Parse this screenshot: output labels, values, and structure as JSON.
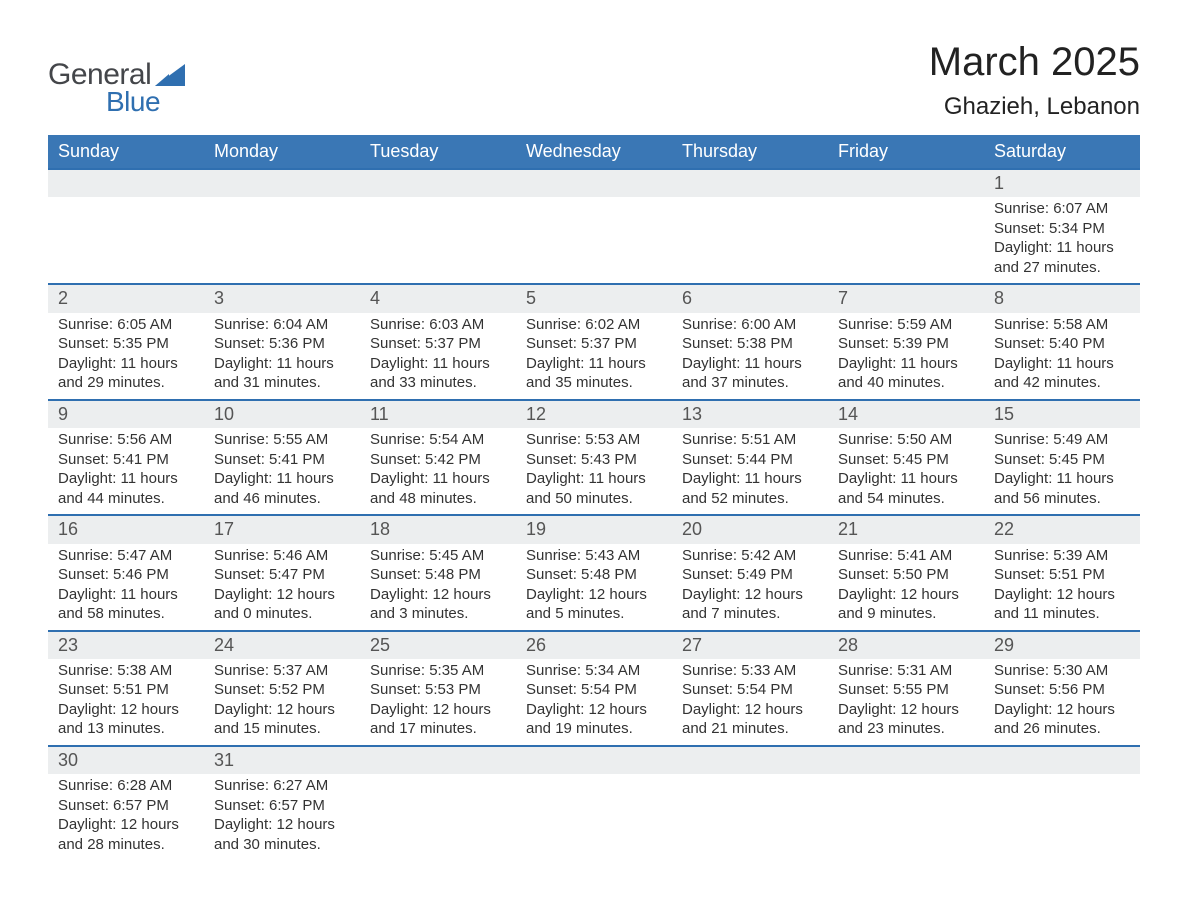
{
  "logo": {
    "text1": "General",
    "text2": "Blue",
    "color_dark": "#44464a",
    "color_blue": "#2f6fb0"
  },
  "title": "March 2025",
  "location": "Ghazieh, Lebanon",
  "colors": {
    "header_bg": "#3a77b5",
    "header_fg": "#ffffff",
    "daynum_bg": "#eceeef",
    "row_divider": "#2f6fb0",
    "body_text": "#333333",
    "page_bg": "#ffffff"
  },
  "day_headers": [
    "Sunday",
    "Monday",
    "Tuesday",
    "Wednesday",
    "Thursday",
    "Friday",
    "Saturday"
  ],
  "weeks": [
    [
      null,
      null,
      null,
      null,
      null,
      null,
      {
        "n": "1",
        "sunrise": "6:07 AM",
        "sunset": "5:34 PM",
        "daylight": "11 hours and 27 minutes."
      }
    ],
    [
      {
        "n": "2",
        "sunrise": "6:05 AM",
        "sunset": "5:35 PM",
        "daylight": "11 hours and 29 minutes."
      },
      {
        "n": "3",
        "sunrise": "6:04 AM",
        "sunset": "5:36 PM",
        "daylight": "11 hours and 31 minutes."
      },
      {
        "n": "4",
        "sunrise": "6:03 AM",
        "sunset": "5:37 PM",
        "daylight": "11 hours and 33 minutes."
      },
      {
        "n": "5",
        "sunrise": "6:02 AM",
        "sunset": "5:37 PM",
        "daylight": "11 hours and 35 minutes."
      },
      {
        "n": "6",
        "sunrise": "6:00 AM",
        "sunset": "5:38 PM",
        "daylight": "11 hours and 37 minutes."
      },
      {
        "n": "7",
        "sunrise": "5:59 AM",
        "sunset": "5:39 PM",
        "daylight": "11 hours and 40 minutes."
      },
      {
        "n": "8",
        "sunrise": "5:58 AM",
        "sunset": "5:40 PM",
        "daylight": "11 hours and 42 minutes."
      }
    ],
    [
      {
        "n": "9",
        "sunrise": "5:56 AM",
        "sunset": "5:41 PM",
        "daylight": "11 hours and 44 minutes."
      },
      {
        "n": "10",
        "sunrise": "5:55 AM",
        "sunset": "5:41 PM",
        "daylight": "11 hours and 46 minutes."
      },
      {
        "n": "11",
        "sunrise": "5:54 AM",
        "sunset": "5:42 PM",
        "daylight": "11 hours and 48 minutes."
      },
      {
        "n": "12",
        "sunrise": "5:53 AM",
        "sunset": "5:43 PM",
        "daylight": "11 hours and 50 minutes."
      },
      {
        "n": "13",
        "sunrise": "5:51 AM",
        "sunset": "5:44 PM",
        "daylight": "11 hours and 52 minutes."
      },
      {
        "n": "14",
        "sunrise": "5:50 AM",
        "sunset": "5:45 PM",
        "daylight": "11 hours and 54 minutes."
      },
      {
        "n": "15",
        "sunrise": "5:49 AM",
        "sunset": "5:45 PM",
        "daylight": "11 hours and 56 minutes."
      }
    ],
    [
      {
        "n": "16",
        "sunrise": "5:47 AM",
        "sunset": "5:46 PM",
        "daylight": "11 hours and 58 minutes."
      },
      {
        "n": "17",
        "sunrise": "5:46 AM",
        "sunset": "5:47 PM",
        "daylight": "12 hours and 0 minutes."
      },
      {
        "n": "18",
        "sunrise": "5:45 AM",
        "sunset": "5:48 PM",
        "daylight": "12 hours and 3 minutes."
      },
      {
        "n": "19",
        "sunrise": "5:43 AM",
        "sunset": "5:48 PM",
        "daylight": "12 hours and 5 minutes."
      },
      {
        "n": "20",
        "sunrise": "5:42 AM",
        "sunset": "5:49 PM",
        "daylight": "12 hours and 7 minutes."
      },
      {
        "n": "21",
        "sunrise": "5:41 AM",
        "sunset": "5:50 PM",
        "daylight": "12 hours and 9 minutes."
      },
      {
        "n": "22",
        "sunrise": "5:39 AM",
        "sunset": "5:51 PM",
        "daylight": "12 hours and 11 minutes."
      }
    ],
    [
      {
        "n": "23",
        "sunrise": "5:38 AM",
        "sunset": "5:51 PM",
        "daylight": "12 hours and 13 minutes."
      },
      {
        "n": "24",
        "sunrise": "5:37 AM",
        "sunset": "5:52 PM",
        "daylight": "12 hours and 15 minutes."
      },
      {
        "n": "25",
        "sunrise": "5:35 AM",
        "sunset": "5:53 PM",
        "daylight": "12 hours and 17 minutes."
      },
      {
        "n": "26",
        "sunrise": "5:34 AM",
        "sunset": "5:54 PM",
        "daylight": "12 hours and 19 minutes."
      },
      {
        "n": "27",
        "sunrise": "5:33 AM",
        "sunset": "5:54 PM",
        "daylight": "12 hours and 21 minutes."
      },
      {
        "n": "28",
        "sunrise": "5:31 AM",
        "sunset": "5:55 PM",
        "daylight": "12 hours and 23 minutes."
      },
      {
        "n": "29",
        "sunrise": "5:30 AM",
        "sunset": "5:56 PM",
        "daylight": "12 hours and 26 minutes."
      }
    ],
    [
      {
        "n": "30",
        "sunrise": "6:28 AM",
        "sunset": "6:57 PM",
        "daylight": "12 hours and 28 minutes."
      },
      {
        "n": "31",
        "sunrise": "6:27 AM",
        "sunset": "6:57 PM",
        "daylight": "12 hours and 30 minutes."
      },
      null,
      null,
      null,
      null,
      null
    ]
  ],
  "labels": {
    "sunrise": "Sunrise: ",
    "sunset": "Sunset: ",
    "daylight": "Daylight: "
  }
}
